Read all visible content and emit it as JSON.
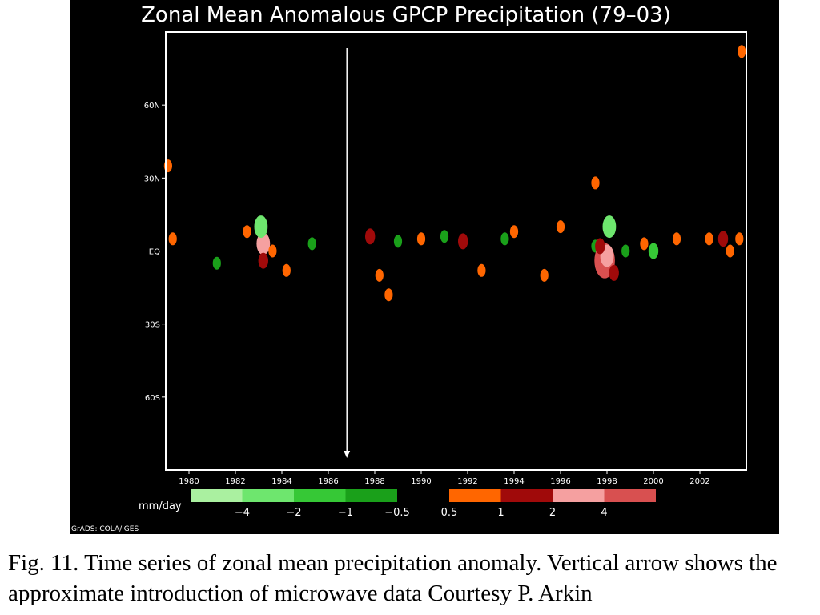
{
  "chart_data": {
    "type": "heatmap",
    "title": "Zonal Mean Anomalous GPCP Precipitation (79–03)",
    "xlabel": "",
    "ylabel": "",
    "x_tick_labels": [
      "1980",
      "1982",
      "1984",
      "1986",
      "1988",
      "1990",
      "1992",
      "1994",
      "1996",
      "1998",
      "2000",
      "2002"
    ],
    "y_tick_labels": [
      "60N",
      "30N",
      "EQ",
      "30S",
      "60S"
    ],
    "xlim": [
      1979,
      2004
    ],
    "ylim": [
      -90,
      90
    ],
    "background": "#000000",
    "units_label": "mm/day",
    "colorbar": {
      "negative": [
        {
          "label": "−4",
          "color": "#aaf0a0"
        },
        {
          "label": "−2",
          "color": "#6ee66e"
        },
        {
          "label": "−1",
          "color": "#36c836"
        },
        {
          "label": "−0.5",
          "color": "#1aa01a"
        }
      ],
      "positive": [
        {
          "label": "0.5",
          "color": "#ff6600"
        },
        {
          "label": "1",
          "color": "#a00a0a"
        },
        {
          "label": "2",
          "color": "#f5a0a0"
        },
        {
          "label": "4",
          "color": "#d85050"
        }
      ]
    },
    "arrow_year": 1986.8,
    "anomaly_features": [
      {
        "year": 1983.2,
        "lat": 3,
        "anomaly": 2
      },
      {
        "year": 1983.2,
        "lat": -4,
        "anomaly": 1
      },
      {
        "year": 1983.1,
        "lat": 10,
        "anomaly": -2
      },
      {
        "year": 1983.6,
        "lat": 0,
        "anomaly": 0.5
      },
      {
        "year": 1984.2,
        "lat": -8,
        "anomaly": 0.5
      },
      {
        "year": 1985.3,
        "lat": 3,
        "anomaly": -0.5
      },
      {
        "year": 1982.5,
        "lat": 8,
        "anomaly": 0.5
      },
      {
        "year": 1981.2,
        "lat": -5,
        "anomaly": -0.5
      },
      {
        "year": 1979.3,
        "lat": 5,
        "anomaly": 0.5
      },
      {
        "year": 1979.1,
        "lat": 35,
        "anomaly": 0.5
      },
      {
        "year": 1987.8,
        "lat": 6,
        "anomaly": 1
      },
      {
        "year": 1988.2,
        "lat": -10,
        "anomaly": 0.5
      },
      {
        "year": 1988.6,
        "lat": -18,
        "anomaly": 0.5
      },
      {
        "year": 1989.0,
        "lat": 4,
        "anomaly": -0.5
      },
      {
        "year": 1990.0,
        "lat": 5,
        "anomaly": 0.5
      },
      {
        "year": 1991.0,
        "lat": 6,
        "anomaly": -0.5
      },
      {
        "year": 1991.8,
        "lat": 4,
        "anomaly": 1
      },
      {
        "year": 1992.6,
        "lat": -8,
        "anomaly": 0.5
      },
      {
        "year": 1993.6,
        "lat": 5,
        "anomaly": -0.5
      },
      {
        "year": 1994.0,
        "lat": 8,
        "anomaly": 0.5
      },
      {
        "year": 1995.3,
        "lat": -10,
        "anomaly": 0.5
      },
      {
        "year": 1996.0,
        "lat": 10,
        "anomaly": 0.5
      },
      {
        "year": 1997.5,
        "lat": 2,
        "anomaly": -0.5
      },
      {
        "year": 1997.9,
        "lat": -4,
        "anomaly": 4
      },
      {
        "year": 1998.0,
        "lat": -2,
        "anomaly": 2
      },
      {
        "year": 1997.7,
        "lat": 2,
        "anomaly": 1
      },
      {
        "year": 1998.3,
        "lat": -9,
        "anomaly": 1
      },
      {
        "year": 1998.1,
        "lat": 10,
        "anomaly": -2
      },
      {
        "year": 1998.8,
        "lat": 0,
        "anomaly": -0.5
      },
      {
        "year": 1997.5,
        "lat": 28,
        "anomaly": 0.5
      },
      {
        "year": 1999.6,
        "lat": 3,
        "anomaly": 0.5
      },
      {
        "year": 2000.0,
        "lat": 0,
        "anomaly": -1
      },
      {
        "year": 2001.0,
        "lat": 5,
        "anomaly": 0.5
      },
      {
        "year": 2002.4,
        "lat": 5,
        "anomaly": 0.5
      },
      {
        "year": 2003.0,
        "lat": 5,
        "anomaly": 1
      },
      {
        "year": 2003.3,
        "lat": 0,
        "anomaly": 0.5
      },
      {
        "year": 2003.7,
        "lat": 5,
        "anomaly": 0.5
      },
      {
        "year": 2003.8,
        "lat": 82,
        "anomaly": 0.5
      }
    ]
  },
  "credit": "GrADS: COLA/IGES",
  "caption": "Fig. 11. Time series of zonal mean precipitation anomaly. Vertical arrow shows the approximate introduction of microwave data Courtesy P. Arkin"
}
